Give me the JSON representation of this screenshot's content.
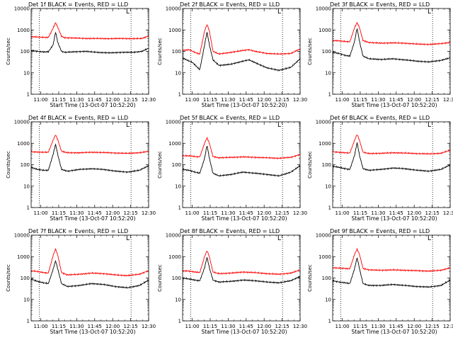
{
  "figure": {
    "xlabel": "Start Time (13-Oct-07 10:52:20)",
    "ylabel": "Counts/sec",
    "corner_marker": "L"
  },
  "chart_data": [
    {
      "type": "line",
      "title": "Det 1f BLACK = Events, RED = LLD",
      "ylim": [
        1,
        10000
      ],
      "yscale": "log",
      "x_ticks": [
        "11:00",
        "11:15",
        "11:30",
        "11:45",
        "12:00",
        "12:15",
        "12:30"
      ],
      "y_ticks": [
        "1",
        "10",
        "100",
        "1000",
        "10000"
      ],
      "x_range_minutes": [
        -0.33,
        97.67
      ],
      "dotted_vlines": [
        6.5,
        83.0
      ],
      "series": [
        {
          "name": "Events",
          "color": "#000000",
          "x": [
            -0.33,
            5,
            10,
            14,
            18,
            20,
            22,
            25,
            28,
            35,
            45,
            55,
            65,
            75,
            85,
            92,
            97.67
          ],
          "y": [
            110,
            100,
            95,
            95,
            200,
            820,
            250,
            100,
            90,
            95,
            100,
            90,
            85,
            90,
            90,
            100,
            140
          ]
        },
        {
          "name": "LLD",
          "color": "#ff0000",
          "x": [
            -0.33,
            5,
            10,
            14,
            18,
            20,
            22,
            25,
            28,
            35,
            45,
            55,
            65,
            75,
            85,
            92,
            97.67
          ],
          "y": [
            480,
            470,
            450,
            450,
            1200,
            2200,
            1300,
            500,
            430,
            420,
            400,
            400,
            390,
            400,
            390,
            400,
            520
          ]
        }
      ]
    },
    {
      "type": "line",
      "title": "Det 2f BLACK = Events, RED = LLD",
      "ylim": [
        1,
        10000
      ],
      "yscale": "log",
      "x_ticks": [
        "11:00",
        "11:15",
        "11:30",
        "11:45",
        "12:00",
        "12:15",
        "12:30"
      ],
      "y_ticks": [
        "1",
        "10",
        "100",
        "1000",
        "10000"
      ],
      "x_range_minutes": [
        -0.33,
        97.67
      ],
      "dotted_vlines": [
        6.5,
        83.0
      ],
      "series": [
        {
          "name": "Events",
          "color": "#000000",
          "x": [
            -0.33,
            3,
            8,
            12,
            14,
            18,
            20,
            22,
            25,
            30,
            40,
            50,
            55,
            60,
            70,
            80,
            90,
            97.67
          ],
          "y": [
            50,
            40,
            30,
            18,
            14,
            200,
            800,
            200,
            40,
            22,
            25,
            35,
            40,
            30,
            17,
            13,
            18,
            45
          ]
        },
        {
          "name": "LLD",
          "color": "#ff0000",
          "x": [
            -0.33,
            5,
            12,
            14,
            18,
            20,
            22,
            25,
            30,
            40,
            50,
            55,
            60,
            70,
            80,
            90,
            97.67
          ],
          "y": [
            110,
            120,
            80,
            75,
            900,
            1800,
            900,
            100,
            75,
            90,
            110,
            120,
            100,
            80,
            75,
            80,
            130
          ]
        }
      ]
    },
    {
      "type": "line",
      "title": "Det 3f BLACK = Events, RED = LLD",
      "ylim": [
        1,
        10000
      ],
      "yscale": "log",
      "x_ticks": [
        "11:00",
        "11:15",
        "11:30",
        "11:45",
        "12:00",
        "12:15",
        "12:30"
      ],
      "y_ticks": [
        "1",
        "10",
        "100",
        "1000",
        "10000"
      ],
      "x_range_minutes": [
        -0.33,
        97.67
      ],
      "dotted_vlines": [
        6.5,
        83.0
      ],
      "series": [
        {
          "name": "Events",
          "color": "#000000",
          "x": [
            -0.33,
            5,
            10,
            14,
            18,
            20,
            22,
            25,
            30,
            40,
            50,
            60,
            70,
            80,
            90,
            97.67
          ],
          "y": [
            90,
            80,
            65,
            60,
            300,
            1200,
            300,
            60,
            45,
            42,
            45,
            40,
            35,
            32,
            38,
            50
          ]
        },
        {
          "name": "LLD",
          "color": "#ff0000",
          "x": [
            -0.33,
            5,
            10,
            14,
            18,
            20,
            22,
            25,
            30,
            40,
            50,
            60,
            70,
            80,
            90,
            97.67
          ],
          "y": [
            320,
            310,
            290,
            280,
            1300,
            2200,
            1300,
            320,
            260,
            240,
            250,
            240,
            220,
            210,
            230,
            260
          ]
        }
      ]
    },
    {
      "type": "line",
      "title": "Det 4f BLACK = Events, RED = LLD",
      "ylim": [
        1,
        10000
      ],
      "yscale": "log",
      "x_ticks": [
        "11:00",
        "11:15",
        "11:30",
        "11:45",
        "12:00",
        "12:15",
        "12:30"
      ],
      "y_ticks": [
        "1",
        "10",
        "100",
        "1000",
        "10000"
      ],
      "x_range_minutes": [
        -0.33,
        97.67
      ],
      "dotted_vlines": [
        6.5,
        83.0
      ],
      "series": [
        {
          "name": "Events",
          "color": "#000000",
          "x": [
            -0.33,
            5,
            10,
            14,
            18,
            20,
            22,
            25,
            30,
            40,
            50,
            60,
            70,
            80,
            90,
            97.67
          ],
          "y": [
            75,
            60,
            55,
            55,
            300,
            900,
            280,
            60,
            50,
            60,
            65,
            60,
            50,
            45,
            55,
            90
          ]
        },
        {
          "name": "LLD",
          "color": "#ff0000",
          "x": [
            -0.33,
            5,
            10,
            14,
            18,
            20,
            22,
            25,
            30,
            40,
            50,
            60,
            70,
            80,
            90,
            97.67
          ],
          "y": [
            400,
            390,
            380,
            380,
            1400,
            2500,
            1400,
            420,
            360,
            360,
            380,
            370,
            350,
            340,
            360,
            420
          ]
        }
      ]
    },
    {
      "type": "line",
      "title": "Det 5f BLACK = Events, RED = LLD",
      "ylim": [
        1,
        10000
      ],
      "yscale": "log",
      "x_ticks": [
        "11:00",
        "11:15",
        "11:30",
        "11:45",
        "12:00",
        "12:15",
        "12:30"
      ],
      "y_ticks": [
        "1",
        "10",
        "100",
        "1000",
        "10000"
      ],
      "x_range_minutes": [
        -0.33,
        97.67
      ],
      "dotted_vlines": [
        6.5,
        83.0
      ],
      "series": [
        {
          "name": "Events",
          "color": "#000000",
          "x": [
            -0.33,
            5,
            10,
            14,
            18,
            20,
            22,
            25,
            30,
            40,
            50,
            60,
            70,
            80,
            90,
            97.67
          ],
          "y": [
            60,
            55,
            45,
            40,
            200,
            800,
            200,
            40,
            30,
            35,
            45,
            40,
            35,
            30,
            45,
            90
          ]
        },
        {
          "name": "LLD",
          "color": "#ff0000",
          "x": [
            -0.33,
            5,
            10,
            14,
            18,
            20,
            22,
            25,
            30,
            40,
            50,
            60,
            70,
            80,
            90,
            97.67
          ],
          "y": [
            260,
            260,
            240,
            230,
            1000,
            1800,
            1000,
            240,
            210,
            220,
            230,
            220,
            210,
            200,
            220,
            300
          ]
        }
      ]
    },
    {
      "type": "line",
      "title": "Det 6f BLACK = Events, RED = LLD",
      "ylim": [
        1,
        10000
      ],
      "yscale": "log",
      "x_ticks": [
        "11:00",
        "11:15",
        "11:30",
        "11:45",
        "12:00",
        "12:15",
        "12:30"
      ],
      "y_ticks": [
        "1",
        "10",
        "100",
        "1000",
        "10000"
      ],
      "x_range_minutes": [
        -0.33,
        97.67
      ],
      "dotted_vlines": [
        6.5,
        83.0
      ],
      "series": [
        {
          "name": "Events",
          "color": "#000000",
          "x": [
            -0.33,
            5,
            10,
            14,
            18,
            20,
            22,
            25,
            30,
            40,
            50,
            60,
            70,
            80,
            90,
            97.67
          ],
          "y": [
            85,
            75,
            65,
            60,
            280,
            1100,
            280,
            65,
            55,
            60,
            70,
            65,
            55,
            50,
            60,
            100
          ]
        },
        {
          "name": "LLD",
          "color": "#ff0000",
          "x": [
            -0.33,
            5,
            10,
            14,
            18,
            20,
            22,
            25,
            30,
            40,
            50,
            60,
            70,
            80,
            90,
            97.67
          ],
          "y": [
            400,
            380,
            360,
            350,
            1400,
            2600,
            1400,
            380,
            330,
            340,
            360,
            350,
            330,
            320,
            340,
            480
          ]
        }
      ]
    },
    {
      "type": "line",
      "title": "Det 7f BLACK = Events, RED = LLD",
      "ylim": [
        1,
        10000
      ],
      "yscale": "log",
      "x_ticks": [
        "11:00",
        "11:15",
        "11:30",
        "11:45",
        "12:00",
        "12:15",
        "12:30"
      ],
      "y_ticks": [
        "1",
        "10",
        "100",
        "1000",
        "10000"
      ],
      "x_range_minutes": [
        -0.33,
        97.67
      ],
      "dotted_vlines": [
        6.5,
        83.0
      ],
      "series": [
        {
          "name": "Events",
          "color": "#000000",
          "x": [
            -0.33,
            5,
            10,
            14,
            18,
            20,
            22,
            25,
            30,
            40,
            50,
            60,
            70,
            80,
            90,
            97.67
          ],
          "y": [
            90,
            70,
            60,
            55,
            250,
            650,
            250,
            55,
            40,
            45,
            55,
            50,
            40,
            35,
            45,
            80
          ]
        },
        {
          "name": "LLD",
          "color": "#ff0000",
          "x": [
            -0.33,
            5,
            10,
            14,
            18,
            20,
            22,
            25,
            30,
            40,
            50,
            60,
            70,
            80,
            90,
            97.67
          ],
          "y": [
            220,
            200,
            180,
            170,
            1100,
            2300,
            1100,
            180,
            140,
            150,
            170,
            160,
            140,
            130,
            150,
            220
          ]
        }
      ]
    },
    {
      "type": "line",
      "title": "Det 8f BLACK = Events, RED = LLD",
      "ylim": [
        1,
        10000
      ],
      "yscale": "log",
      "x_ticks": [
        "11:00",
        "11:15",
        "11:30",
        "11:45",
        "12:00",
        "12:15",
        "12:30"
      ],
      "y_ticks": [
        "1",
        "10",
        "100",
        "1000",
        "10000"
      ],
      "x_range_minutes": [
        -0.33,
        97.67
      ],
      "dotted_vlines": [
        6.5,
        83.0
      ],
      "series": [
        {
          "name": "Events",
          "color": "#000000",
          "x": [
            -0.33,
            5,
            10,
            14,
            18,
            20,
            22,
            25,
            30,
            40,
            50,
            60,
            70,
            80,
            90,
            97.67
          ],
          "y": [
            100,
            90,
            80,
            75,
            300,
            950,
            300,
            80,
            65,
            70,
            80,
            75,
            65,
            60,
            75,
            120
          ]
        },
        {
          "name": "LLD",
          "color": "#ff0000",
          "x": [
            -0.33,
            5,
            10,
            14,
            18,
            20,
            22,
            25,
            30,
            40,
            50,
            60,
            70,
            80,
            90,
            97.67
          ],
          "y": [
            220,
            210,
            190,
            180,
            1000,
            1900,
            1000,
            190,
            160,
            170,
            190,
            180,
            160,
            150,
            170,
            240
          ]
        }
      ]
    },
    {
      "type": "line",
      "title": "Det 9f BLACK = Events, RED = LLD",
      "ylim": [
        1,
        10000
      ],
      "yscale": "log",
      "x_ticks": [
        "11:00",
        "11:15",
        "11:30",
        "11:45",
        "12:00",
        "12:15",
        "12:30"
      ],
      "y_ticks": [
        "1",
        "10",
        "100",
        "1000",
        "10000"
      ],
      "x_range_minutes": [
        -0.33,
        97.67
      ],
      "dotted_vlines": [
        6.5,
        83.0
      ],
      "series": [
        {
          "name": "Events",
          "color": "#000000",
          "x": [
            -0.33,
            5,
            10,
            14,
            18,
            20,
            22,
            25,
            30,
            40,
            50,
            60,
            70,
            80,
            90,
            97.67
          ],
          "y": [
            75,
            65,
            60,
            55,
            280,
            900,
            280,
            55,
            45,
            45,
            50,
            45,
            40,
            38,
            45,
            80
          ]
        },
        {
          "name": "LLD",
          "color": "#ff0000",
          "x": [
            -0.33,
            5,
            10,
            14,
            18,
            20,
            22,
            25,
            30,
            40,
            50,
            60,
            70,
            80,
            90,
            97.67
          ],
          "y": [
            300,
            290,
            280,
            270,
            1300,
            2200,
            1300,
            280,
            240,
            230,
            240,
            230,
            220,
            210,
            230,
            300
          ]
        }
      ]
    }
  ]
}
